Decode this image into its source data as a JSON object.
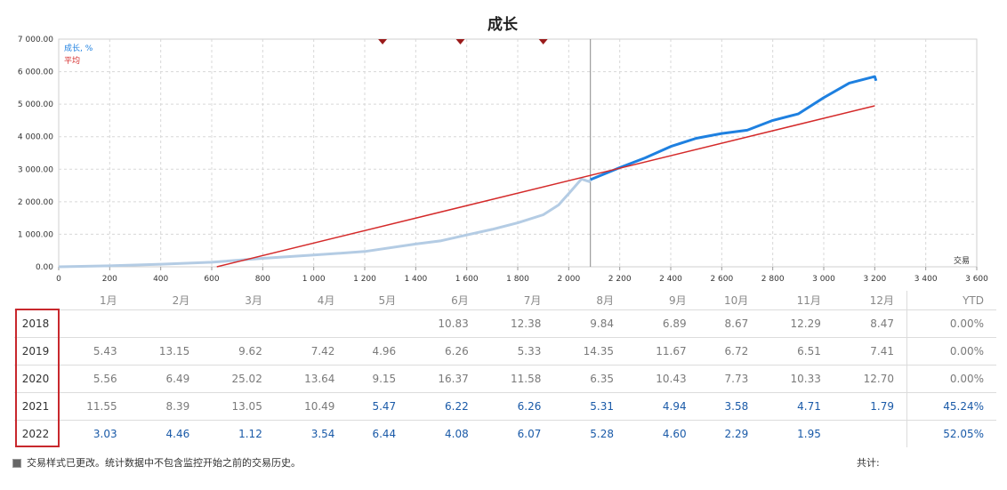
{
  "chart_data": {
    "type": "line",
    "title": "成长",
    "xlabel": "交易",
    "ylabel": "",
    "xlim": [
      0,
      3600
    ],
    "ylim": [
      0,
      7000
    ],
    "x_ticks": [
      0,
      200,
      400,
      600,
      800,
      1000,
      1200,
      1400,
      1600,
      1800,
      2000,
      2200,
      2400,
      2600,
      2800,
      3000,
      3200,
      3400,
      3600
    ],
    "x_tick_labels": [
      "0",
      "200",
      "400",
      "600",
      "800",
      "1 000",
      "1 200",
      "1 400",
      "1 600",
      "1 800",
      "2 000",
      "2 200",
      "2 400",
      "2 600",
      "2 800",
      "3 000",
      "3 200",
      "3 400",
      "3 600"
    ],
    "y_ticks": [
      0,
      1000,
      2000,
      3000,
      4000,
      5000,
      6000,
      7000
    ],
    "y_tick_labels": [
      "0.00",
      "1 000.00",
      "2 000.00",
      "3 000.00",
      "4 000.00",
      "5 000.00",
      "6 000.00",
      "7 000.00"
    ],
    "legend": [
      {
        "name": "成长, %",
        "color": "#1e80e0"
      },
      {
        "name": "平均",
        "color": "#d42a2a"
      }
    ],
    "legend_position": "top-left",
    "grid": true,
    "divider_x": 2085,
    "markers_x": [
      1270,
      1575,
      1900
    ],
    "series": [
      {
        "name": "成长, %",
        "color_before": "#b4cce4",
        "color_after": "#1e80e0",
        "x": [
          0,
          200,
          400,
          600,
          800,
          1000,
          1200,
          1400,
          1500,
          1600,
          1700,
          1800,
          1900,
          1960,
          2000,
          2050,
          2080,
          2085,
          2200,
          2300,
          2400,
          2500,
          2600,
          2700,
          2800,
          2900,
          3000,
          3100,
          3200,
          3205
        ],
        "y": [
          0,
          30,
          80,
          140,
          260,
          360,
          470,
          700,
          800,
          980,
          1150,
          1350,
          1600,
          1900,
          2250,
          2700,
          2620,
          2680,
          3050,
          3350,
          3700,
          3950,
          4100,
          4200,
          4500,
          4700,
          5200,
          5650,
          5850,
          5720
        ]
      },
      {
        "name": "平均",
        "color": "#d42a2a",
        "x": [
          620,
          3200
        ],
        "y": [
          0,
          4950
        ]
      }
    ]
  },
  "table": {
    "headers": [
      "",
      "1月",
      "2月",
      "3月",
      "4月",
      "5月",
      "6月",
      "7月",
      "8月",
      "9月",
      "10月",
      "11月",
      "12月",
      "YTD"
    ],
    "rows": [
      {
        "year": "2018",
        "cells": [
          "",
          "",
          "",
          "",
          "",
          "10.83",
          "12.38",
          "9.84",
          "6.89",
          "8.67",
          "12.29",
          "8.47"
        ],
        "ytd": "0.00%",
        "blue_from": 13,
        "ytd_blue": false
      },
      {
        "year": "2019",
        "cells": [
          "5.43",
          "13.15",
          "9.62",
          "7.42",
          "4.96",
          "6.26",
          "5.33",
          "14.35",
          "11.67",
          "6.72",
          "6.51",
          "7.41"
        ],
        "ytd": "0.00%",
        "blue_from": 13,
        "ytd_blue": false
      },
      {
        "year": "2020",
        "cells": [
          "5.56",
          "6.49",
          "25.02",
          "13.64",
          "9.15",
          "16.37",
          "11.58",
          "6.35",
          "10.43",
          "7.73",
          "10.33",
          "12.70"
        ],
        "ytd": "0.00%",
        "blue_from": 13,
        "ytd_blue": false
      },
      {
        "year": "2021",
        "cells": [
          "11.55",
          "8.39",
          "13.05",
          "10.49",
          "5.47",
          "6.22",
          "6.26",
          "5.31",
          "4.94",
          "3.58",
          "4.71",
          "1.79"
        ],
        "ytd": "45.24%",
        "blue_from": 4,
        "ytd_blue": true
      },
      {
        "year": "2022",
        "cells": [
          "3.03",
          "4.46",
          "1.12",
          "3.54",
          "6.44",
          "4.08",
          "6.07",
          "5.28",
          "4.60",
          "2.29",
          "1.95",
          ""
        ],
        "ytd": "52.05%",
        "blue_from": 0,
        "ytd_blue": true
      }
    ]
  },
  "footer": {
    "note": "交易样式已更改。统计数据中不包含监控开始之前的交易历史。",
    "total_label": "共计:"
  }
}
